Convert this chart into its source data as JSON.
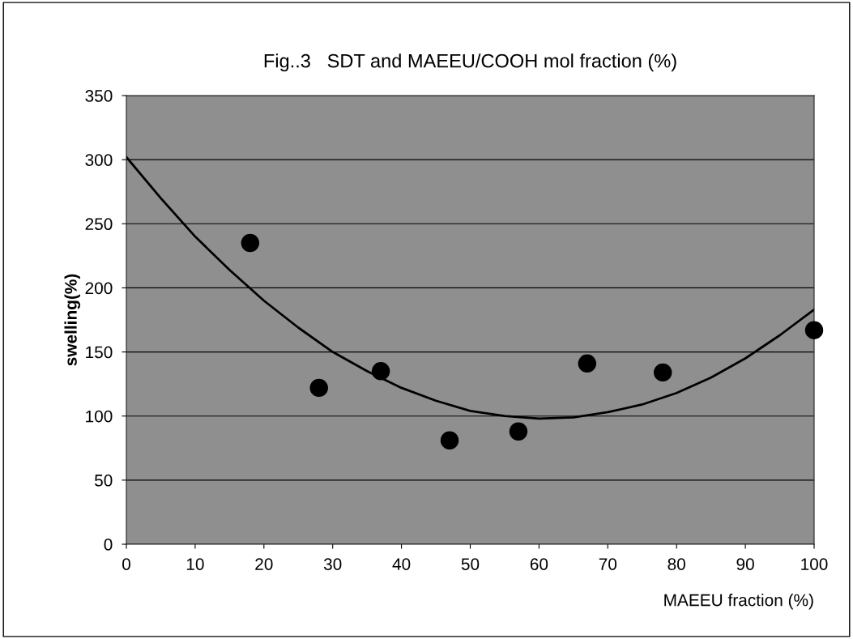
{
  "chart_data": {
    "type": "scatter",
    "title": "Fig..3   SDT and MAEEU/COOH mol fraction (%)",
    "xlabel": "MAEEU fraction (%)",
    "ylabel": "swelling(%)",
    "xlim": [
      0,
      100
    ],
    "xticks": [
      0,
      10,
      20,
      30,
      40,
      50,
      60,
      70,
      80,
      90,
      100
    ],
    "ylim": [
      0,
      350
    ],
    "yticks": [
      0,
      50,
      100,
      150,
      200,
      250,
      300,
      350
    ],
    "grid": "y",
    "series": [
      {
        "color": "#000000",
        "marker": "circle",
        "x": [
          18,
          28,
          37,
          47,
          57,
          67,
          78,
          100
        ],
        "values": [
          235,
          122,
          135,
          81,
          88,
          141,
          134,
          167
        ]
      },
      {
        "type": "line",
        "color": "#000000",
        "line_style": "solid",
        "x": [
          0,
          5,
          10,
          15,
          20,
          25,
          30,
          35,
          40,
          45,
          50,
          55,
          60,
          65,
          70,
          75,
          80,
          85,
          90,
          95,
          100
        ],
        "values": [
          302,
          270,
          240,
          214,
          190,
          169,
          150,
          135,
          122,
          112,
          104,
          100,
          98,
          99,
          103,
          109,
          118,
          130,
          145,
          163,
          183
        ]
      }
    ]
  }
}
